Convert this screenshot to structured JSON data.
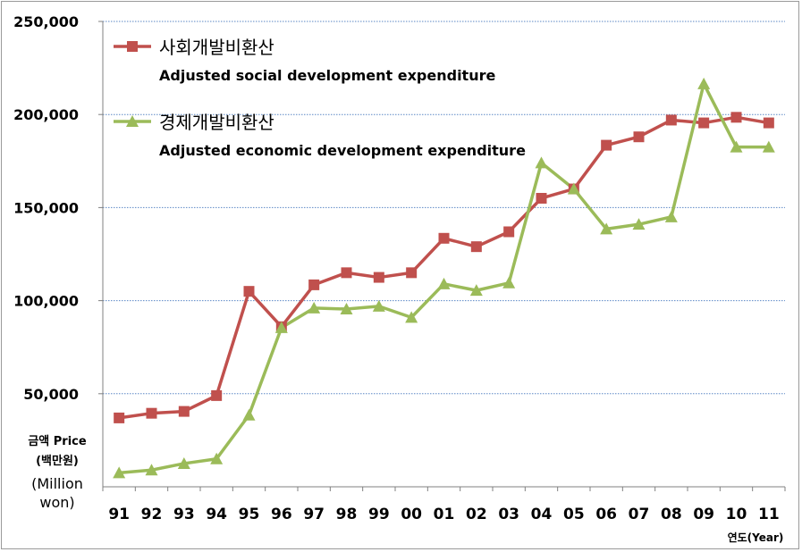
{
  "chart_data": {
    "type": "line",
    "categories": [
      "91",
      "92",
      "93",
      "94",
      "95",
      "96",
      "97",
      "98",
      "99",
      "00",
      "01",
      "02",
      "03",
      "04",
      "05",
      "06",
      "07",
      "08",
      "09",
      "10",
      "11"
    ],
    "series": [
      {
        "name": "사회개발비환산",
        "subtitle": "Adjusted social development expenditure",
        "color": "#c0504d",
        "marker": "square",
        "values": [
          37000,
          39500,
          40500,
          49000,
          105000,
          86000,
          108500,
          115000,
          112500,
          115000,
          133500,
          129000,
          137000,
          155000,
          160000,
          183500,
          188000,
          197000,
          195500,
          198500,
          195500
        ]
      },
      {
        "name": "경제개발비환산",
        "subtitle": "Adjusted economic development expenditure",
        "color": "#9bbb59",
        "marker": "triangle",
        "values": [
          7500,
          9000,
          12500,
          15000,
          38500,
          85500,
          96000,
          95500,
          97000,
          91000,
          109000,
          105500,
          109500,
          174000,
          160000,
          138500,
          141000,
          145000,
          216500,
          182500,
          182500
        ]
      }
    ],
    "ylim": [
      0,
      250000
    ],
    "yticks": [
      50000,
      100000,
      150000,
      200000,
      250000
    ],
    "ytick_labels": [
      "50,000",
      "100,000",
      "150,000",
      "200,000",
      "250,000"
    ],
    "ylabel": [
      "금액 Price",
      "(백만원)",
      "(Million",
      "won)"
    ],
    "xlabel": "연도(Year)",
    "grid": true,
    "legend_position": "top-left"
  }
}
